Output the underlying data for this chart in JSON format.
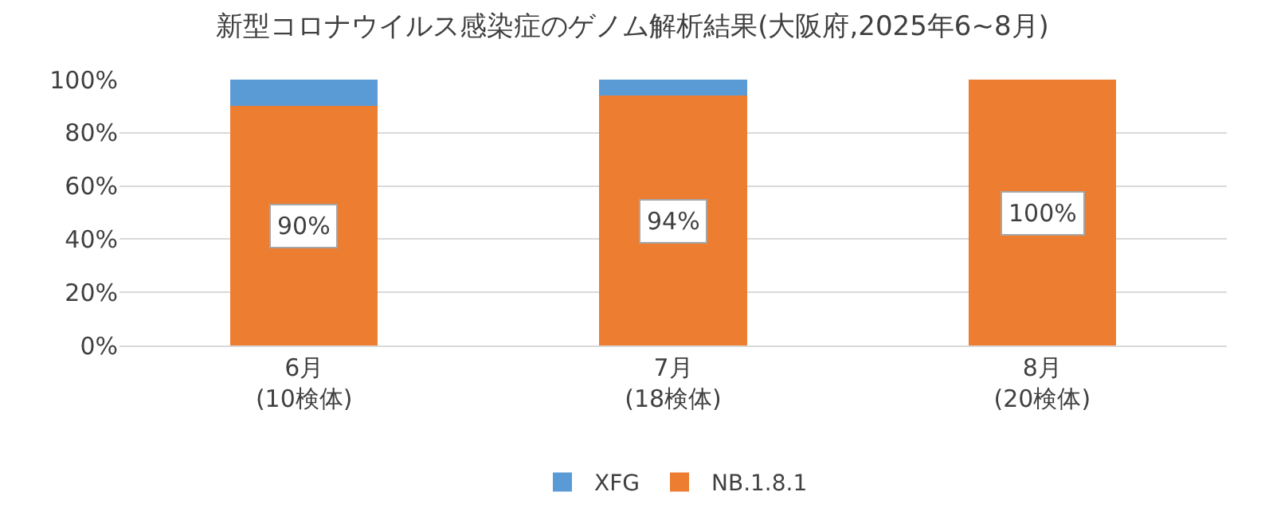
{
  "chart_data": {
    "type": "bar",
    "stacked": true,
    "title": "新型コロナウイルス感染症のゲノム解析結果(大阪府,2025年6~8月)",
    "categories": [
      "6月\n(10検体)",
      "7月\n(18検体)",
      "8月\n(20検体)"
    ],
    "series": [
      {
        "name": "NB.1.8.1",
        "color": "#ed7d31",
        "values": [
          90,
          94,
          100
        ],
        "value_labels": [
          "90%",
          "94%",
          "100%"
        ]
      },
      {
        "name": "XFG",
        "color": "#5b9bd5",
        "values": [
          10,
          6,
          0
        ]
      }
    ],
    "ylim": [
      0,
      100
    ],
    "yticks": [
      {
        "value": 0,
        "label": "0%"
      },
      {
        "value": 20,
        "label": "20%"
      },
      {
        "value": 40,
        "label": "40%"
      },
      {
        "value": 60,
        "label": "60%"
      },
      {
        "value": 80,
        "label": "80%"
      },
      {
        "value": 100,
        "label": "100%"
      }
    ],
    "grid": "y",
    "legend": "bottom"
  }
}
